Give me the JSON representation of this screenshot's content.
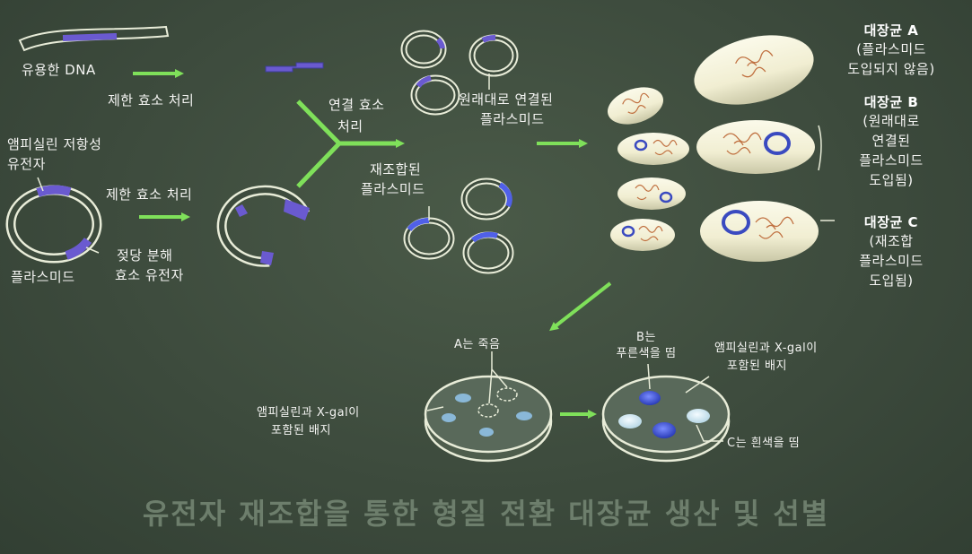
{
  "labels": {
    "useful_dna": "유용한 DNA",
    "restriction_top": "제한 효소 처리",
    "amp_gene_1": "앰피실린 저항성",
    "amp_gene_2": "유전자",
    "restriction_mid": "제한 효소 처리",
    "lactose_1": "젖당 분해",
    "lactose_2": "효소 유전자",
    "plasmid": "플라스미드",
    "ligation_1": "연결 효소",
    "ligation_2": "처리",
    "original_1": "원래대로 연결된",
    "original_2": "플라스미드",
    "recombinant_1": "재조합된",
    "recombinant_2": "플라스미드",
    "a_dies": "A는 죽음",
    "b_blue_1": "B는",
    "b_blue_2": "푸른색을 띰",
    "medium_left_1": "앰피실린과 X-gal이",
    "medium_left_2": "포함된 배지",
    "medium_right_1": "앰피실린과 X-gal이",
    "medium_right_2": "포함된 배지",
    "c_white": "C는 흰색을 띰"
  },
  "ecoli": {
    "a": [
      "대장균 A",
      "(플라스미드",
      "도입되지 않음)"
    ],
    "b": [
      "대장균 B",
      "(원래대로",
      "연결된",
      "플라스미드",
      "도입됨)"
    ],
    "c": [
      "대장균 C",
      "(재조합",
      "플라스미드",
      "도입됨)"
    ]
  },
  "title": "유전자 재조합을 통한 형질 전환 대장균 생산 및 선별",
  "colors": {
    "background": "#3d4b3d",
    "arrow": "#7fe05a",
    "insert": "#6a5ad0",
    "ring": "#e8ecd8",
    "cell": "#f4f2dc",
    "blue_colony": "#4a62d8",
    "white_colony": "#d8ecf4"
  }
}
